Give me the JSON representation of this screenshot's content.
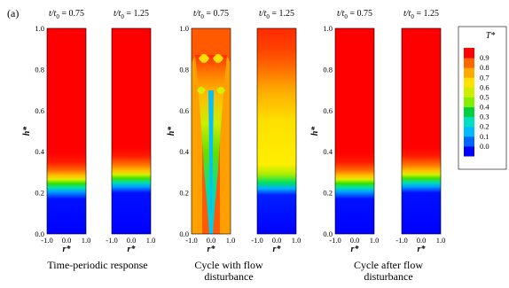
{
  "figure": {
    "panel_label": "(a)",
    "time_label_prefix": "t/t",
    "time_label_sub": "0",
    "axes": {
      "h_label": "h*",
      "r_label": "r*",
      "y_ticks": [
        "0.0",
        "0.2",
        "0.4",
        "0.6",
        "0.8",
        "1.0"
      ],
      "x_ticks": [
        "-1.0",
        "0.0",
        "1.0"
      ]
    },
    "groups": [
      {
        "caption": "Time-periodic response",
        "panels": [
          {
            "time": "= 0.75",
            "field": "stratified",
            "interface_h": 0.27
          },
          {
            "time": "= 1.25",
            "field": "stratified",
            "interface_h": 0.29
          }
        ]
      },
      {
        "caption": "Cycle with flow\ndisturbance",
        "panels": [
          {
            "time": "= 0.75",
            "field": "plume"
          },
          {
            "time": "= 1.25",
            "field": "mixed"
          }
        ]
      },
      {
        "caption": "Cycle after flow\ndisturbance",
        "panels": [
          {
            "time": "= 0.75",
            "field": "stratified",
            "interface_h": 0.27
          },
          {
            "time": "= 1.25",
            "field": "stratified",
            "interface_h": 0.29
          }
        ]
      }
    ],
    "colorbar": {
      "title": "T*",
      "ticks": [
        "0.9",
        "0.8",
        "0.7",
        "0.6",
        "0.5",
        "0.4",
        "0.3",
        "0.2",
        "0.1",
        "0.0"
      ],
      "colors": [
        "#0000ff",
        "#0066ff",
        "#00bbff",
        "#00e0c0",
        "#00d040",
        "#88ee00",
        "#ccee00",
        "#ffe000",
        "#ffaa00",
        "#ff6600",
        "#ff0000"
      ]
    }
  }
}
